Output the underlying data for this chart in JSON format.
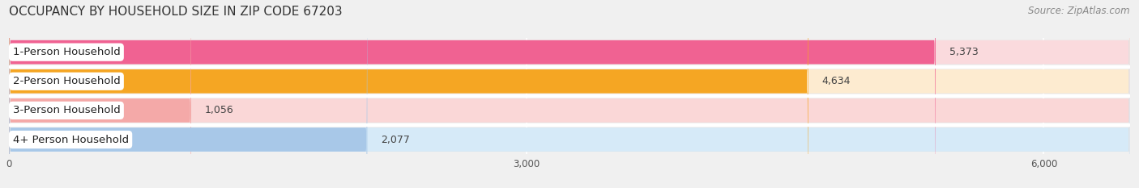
{
  "title": "OCCUPANCY BY HOUSEHOLD SIZE IN ZIP CODE 67203",
  "source": "Source: ZipAtlas.com",
  "categories": [
    "1-Person Household",
    "2-Person Household",
    "3-Person Household",
    "4+ Person Household"
  ],
  "values": [
    5373,
    4634,
    1056,
    2077
  ],
  "bar_colors": [
    "#F06292",
    "#F5A623",
    "#F4A9A8",
    "#A8C8E8"
  ],
  "bar_bg_colors": [
    "#FADADD",
    "#FDEBD0",
    "#FAD7D7",
    "#D6EAF8"
  ],
  "xlim_max": 6500,
  "xticks": [
    0,
    3000,
    6000
  ],
  "title_fontsize": 11,
  "label_fontsize": 9.5,
  "value_fontsize": 9,
  "source_fontsize": 8.5,
  "background_color": "#f0f0f0",
  "row_bg_color": "#e8e8e8",
  "separator_color": "#ffffff"
}
